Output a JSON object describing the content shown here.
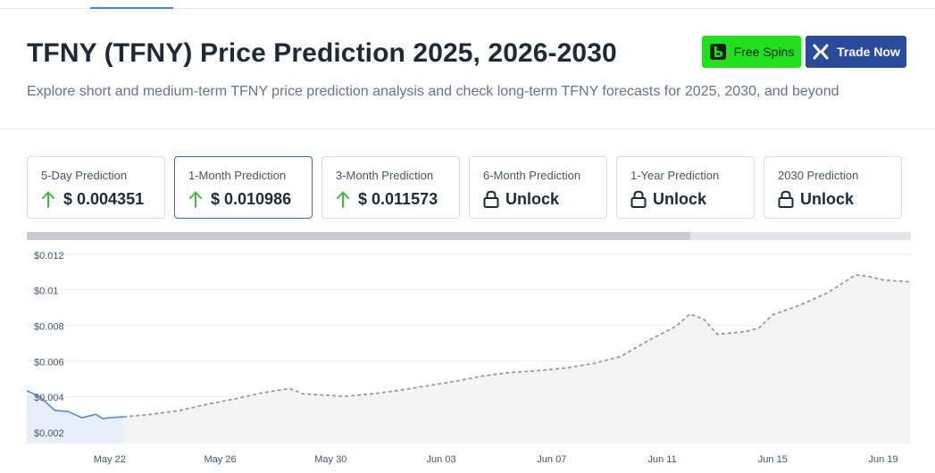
{
  "header": {
    "title": "TFNY (TFNY) Price Prediction 2025, 2026-2030",
    "subtitle": "Explore short and medium-term TFNY price prediction analysis and check long-term TFNY forecasts for 2025, 2030, and beyond",
    "free_spins_label": "Free Spins",
    "trade_now_label": "Trade Now",
    "colors": {
      "free_spins": "#22e01d",
      "trade_now": "#2c4a9c"
    }
  },
  "prediction_cards": [
    {
      "label": "5-Day Prediction",
      "value": "$ 0.004351",
      "icon": "arrow-up-icon"
    },
    {
      "label": "1-Month Prediction",
      "value": "$ 0.010986",
      "icon": "arrow-up-icon",
      "selected": true
    },
    {
      "label": "3-Month Prediction",
      "value": "$ 0.011573",
      "icon": "arrow-up-icon"
    },
    {
      "label": "6-Month Prediction",
      "value": "Unlock",
      "icon": "lock-icon"
    },
    {
      "label": "1-Year Prediction",
      "value": "Unlock",
      "icon": "lock-icon"
    },
    {
      "label": "2030 Prediction",
      "value": "Unlock",
      "icon": "lock-icon"
    }
  ],
  "chart_scroll": {
    "visible_fraction": 0.75
  },
  "chart_data": {
    "type": "line",
    "ylim": [
      0.0018,
      0.0128
    ],
    "y_ticks": [
      0.002,
      0.004,
      0.006,
      0.008,
      0.01,
      0.012
    ],
    "y_tick_labels": [
      "$0.002",
      "$0.004",
      "$0.006",
      "$0.008",
      "$0.01",
      "$0.012"
    ],
    "x_range": [
      "2025-05-19",
      "2025-06-20"
    ],
    "x_ticks": [
      "2025-05-22",
      "2025-05-26",
      "2025-05-30",
      "2025-06-03",
      "2025-06-07",
      "2025-06-11",
      "2025-06-15",
      "2025-06-19"
    ],
    "x_tick_labels": [
      "May 22",
      "May 26",
      "May 30",
      "Jun 03",
      "Jun 07",
      "Jun 11",
      "Jun 15",
      "Jun 19"
    ],
    "grid": true,
    "series": [
      {
        "style": "solid",
        "color": "#4a90d9",
        "points": [
          [
            "2025-05-19T00:00",
            0.00478
          ],
          [
            "2025-05-19T12:00",
            0.0044
          ],
          [
            "2025-05-20T00:00",
            0.00368
          ],
          [
            "2025-05-20T12:00",
            0.0036
          ],
          [
            "2025-05-21T00:00",
            0.00325
          ],
          [
            "2025-05-21T12:00",
            0.00345
          ],
          [
            "2025-05-21T18:00",
            0.0032
          ],
          [
            "2025-05-22T00:00",
            0.00325
          ],
          [
            "2025-05-22T12:00",
            0.0033
          ]
        ]
      },
      {
        "style": "dashed",
        "color": "#9a9a9a",
        "points": [
          [
            "2025-05-22T12:00",
            0.0033
          ],
          [
            "2025-05-23T12:00",
            0.00345
          ],
          [
            "2025-05-24T12:00",
            0.00365
          ],
          [
            "2025-05-25T12:00",
            0.004
          ],
          [
            "2025-05-26T12:00",
            0.0043
          ],
          [
            "2025-05-27T12:00",
            0.00465
          ],
          [
            "2025-05-28T12:00",
            0.0049
          ],
          [
            "2025-05-29T00:00",
            0.0046
          ],
          [
            "2025-05-30T12:00",
            0.00445
          ],
          [
            "2025-05-31T12:00",
            0.0046
          ],
          [
            "2025-06-01T12:00",
            0.0048
          ],
          [
            "2025-06-02T12:00",
            0.00505
          ],
          [
            "2025-06-03T12:00",
            0.0053
          ],
          [
            "2025-06-04T12:00",
            0.0056
          ],
          [
            "2025-06-05T12:00",
            0.0058
          ],
          [
            "2025-06-06T12:00",
            0.0059
          ],
          [
            "2025-06-07T12:00",
            0.00605
          ],
          [
            "2025-06-08T12:00",
            0.0063
          ],
          [
            "2025-06-09T12:00",
            0.0067
          ],
          [
            "2025-06-10T12:00",
            0.0076
          ],
          [
            "2025-06-11T12:00",
            0.0084
          ],
          [
            "2025-06-12T00:00",
            0.0091
          ],
          [
            "2025-06-12T12:00",
            0.0088
          ],
          [
            "2025-06-13T00:00",
            0.00795
          ],
          [
            "2025-06-14T00:00",
            0.0081
          ],
          [
            "2025-06-14T12:00",
            0.0083
          ],
          [
            "2025-06-15T00:00",
            0.00905
          ],
          [
            "2025-06-16T00:00",
            0.0096
          ],
          [
            "2025-06-17T00:00",
            0.0103
          ],
          [
            "2025-06-18T00:00",
            0.0113
          ],
          [
            "2025-06-18T12:00",
            0.0112
          ],
          [
            "2025-06-19T00:00",
            0.011
          ],
          [
            "2025-06-20T00:00",
            0.0109
          ]
        ]
      }
    ]
  }
}
